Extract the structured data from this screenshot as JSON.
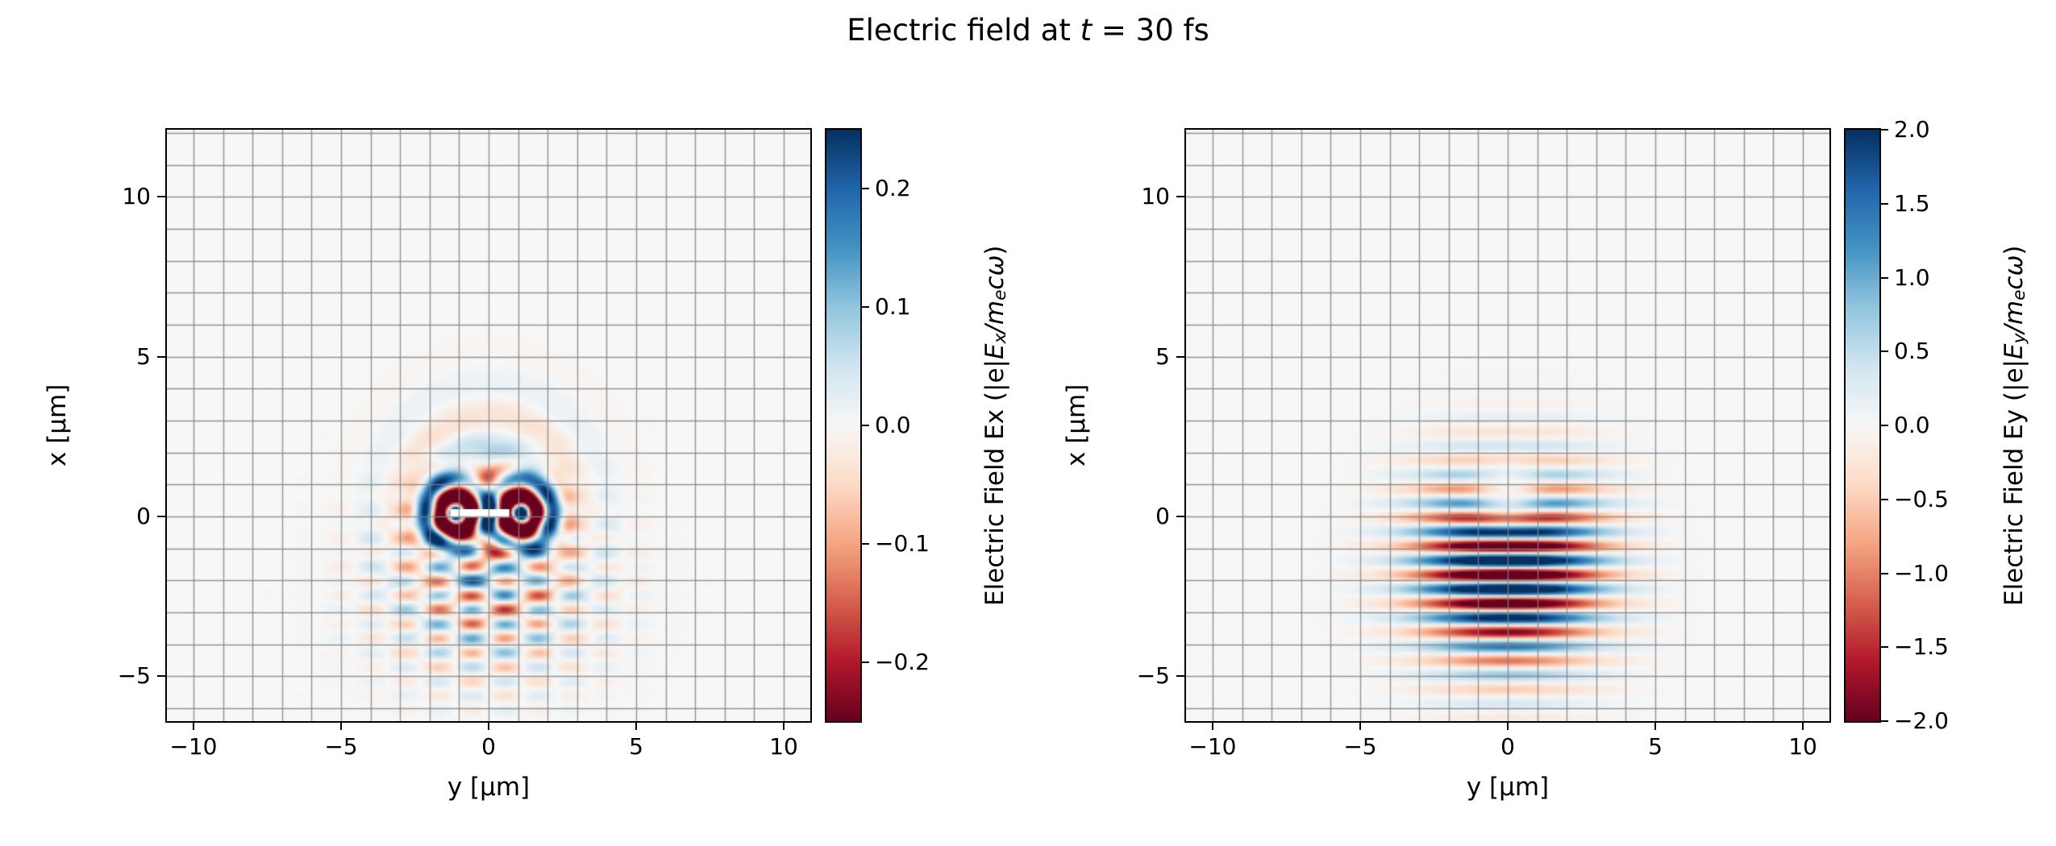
{
  "figure_title": {
    "prefix": "Electric field at ",
    "var": "t",
    "suffix": " = 30 fs",
    "full": "Electric field at t = 30 fs",
    "time_fs": 30
  },
  "colors": {
    "background": "#ffffff",
    "axis": "#000000",
    "grid": "#8c8c8c",
    "marker": "#ffffff",
    "colormap_name": "RdBu"
  },
  "chart_data": [
    {
      "type": "heatmap",
      "panel": "Ex",
      "xlabel": "y [μm]",
      "ylabel": "x [μm]",
      "xlim": [
        -10.9,
        10.9
      ],
      "ylim": [
        -6.4,
        12.1
      ],
      "xticks": [
        -10,
        -5,
        0,
        5,
        10
      ],
      "xtick_labels": [
        "−10",
        "−5",
        "0",
        "5",
        "10"
      ],
      "yticks": [
        -5,
        0,
        5,
        10
      ],
      "ytick_labels": [
        "−5",
        "0",
        "5",
        "10"
      ],
      "grid_spacing": 1,
      "clim": [
        -0.25,
        0.25
      ],
      "colorbar": {
        "ticks": [
          0.2,
          0.1,
          0.0,
          -0.1,
          -0.2
        ],
        "tick_labels": [
          "0.2",
          "0.1",
          "0.0",
          "−0.1",
          "−0.2"
        ],
        "label": {
          "plain": "Electric Field Ex (|e|",
          "math_pre": "E",
          "sub1": "x",
          "math_mid": "/m",
          "sub2": "e",
          "math_post": "cω",
          "close": ")"
        },
        "label_text": "Electric Field Ex (|e|Ex/mecω)"
      },
      "field_model": {
        "components": [
          {
            "type": "checkerboard",
            "amp": 0.17,
            "wavelength_x": 0.9,
            "wavelength_y": 2.3,
            "center": [
              -2.3,
              0
            ],
            "sigma": [
              2.7,
              3.4
            ]
          },
          {
            "type": "ring",
            "amp": 0.55,
            "center": [
              0.1,
              1.1
            ],
            "ring_wavelength": 1.15,
            "sigma": 1.05
          },
          {
            "type": "ring",
            "amp": 0.55,
            "center": [
              0.1,
              -1.1
            ],
            "ring_wavelength": 1.15,
            "sigma": 1.05
          },
          {
            "type": "ring",
            "amp": 0.1,
            "center": [
              0.1,
              0
            ],
            "ring_wavelength": 2.1,
            "sigma": 3.0
          }
        ]
      },
      "marker": {
        "type": "white-line-segment",
        "x": 0.1,
        "y_range": [
          -1.3,
          0.7
        ],
        "thickness": 0.26
      }
    },
    {
      "type": "heatmap",
      "panel": "Ey",
      "xlabel": "y [μm]",
      "ylabel": "x [μm]",
      "xlim": [
        -10.9,
        10.9
      ],
      "ylim": [
        -6.4,
        12.1
      ],
      "xticks": [
        -10,
        -5,
        0,
        5,
        10
      ],
      "xtick_labels": [
        "−10",
        "−5",
        "0",
        "5",
        "10"
      ],
      "yticks": [
        -5,
        0,
        5,
        10
      ],
      "ytick_labels": [
        "−5",
        "0",
        "5",
        "10"
      ],
      "grid_spacing": 1,
      "clim": [
        -2.0,
        2.0
      ],
      "colorbar": {
        "ticks": [
          2.0,
          1.5,
          1.0,
          0.5,
          0.0,
          -0.5,
          -1.0,
          -1.5,
          -2.0
        ],
        "tick_labels": [
          "2.0",
          "1.5",
          "1.0",
          "0.5",
          "0.0",
          "−0.5",
          "−1.0",
          "−1.5",
          "−2.0"
        ],
        "label": {
          "plain": "Electric Field Ey (|e|",
          "math_pre": "E",
          "sub1": "y",
          "math_mid": "/m",
          "sub2": "e",
          "math_post": "cω",
          "close": ")"
        },
        "label_text": "Electric Field Ey (|e|Ey/mecω)"
      },
      "field_model": {
        "components": [
          {
            "type": "stripes",
            "amp": 3.2,
            "wavelength_x": 0.9,
            "center": [
              -1.6,
              0
            ],
            "sigma": [
              2.8,
              2.9
            ],
            "phase": 0.2
          }
        ],
        "notch": {
          "center": [
            0.9,
            0
          ],
          "sigma": [
            1.2,
            1.3
          ],
          "depth": 0.96
        }
      }
    }
  ]
}
